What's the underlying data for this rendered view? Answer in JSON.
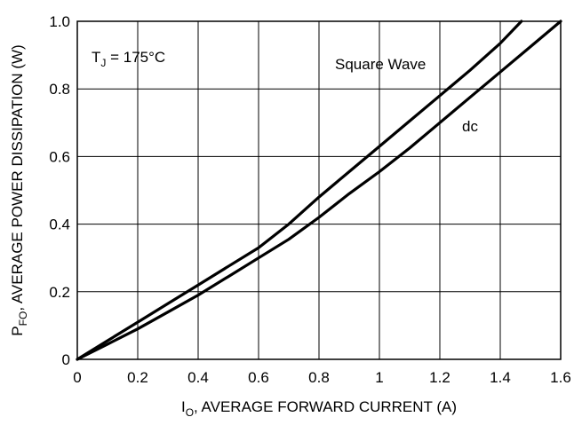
{
  "chart_data": {
    "type": "line",
    "title": "",
    "xlabel": {
      "main": "I",
      "sub": "O",
      "rest": ", AVERAGE FORWARD CURRENT (A)"
    },
    "ylabel": {
      "main": "P",
      "sub": "FO",
      "rest": ", AVERAGE POWER DISSIPATION (W)"
    },
    "xlim": [
      0,
      1.6
    ],
    "ylim": [
      0,
      1.0
    ],
    "xticks": [
      {
        "value": 0,
        "label": "0"
      },
      {
        "value": 0.2,
        "label": "0.2"
      },
      {
        "value": 0.4,
        "label": "0.4"
      },
      {
        "value": 0.6,
        "label": "0.6"
      },
      {
        "value": 0.8,
        "label": "0.8"
      },
      {
        "value": 1.0,
        "label": "1"
      },
      {
        "value": 1.2,
        "label": "1.2"
      },
      {
        "value": 1.4,
        "label": "1.4"
      },
      {
        "value": 1.6,
        "label": "1.6"
      }
    ],
    "yticks": [
      {
        "value": 0,
        "label": "0"
      },
      {
        "value": 0.2,
        "label": "0.2"
      },
      {
        "value": 0.4,
        "label": "0.4"
      },
      {
        "value": 0.6,
        "label": "0.6"
      },
      {
        "value": 0.8,
        "label": "0.8"
      },
      {
        "value": 1.0,
        "label": "1.0"
      }
    ],
    "grid": true,
    "condition": {
      "main": "T",
      "sub": "J",
      "rest": " = 175°C"
    },
    "series": [
      {
        "name": "Square Wave",
        "x": [
          0,
          0.1,
          0.2,
          0.3,
          0.4,
          0.5,
          0.6,
          0.7,
          0.8,
          0.9,
          1.0,
          1.1,
          1.2,
          1.3,
          1.4,
          1.47
        ],
        "y": [
          0,
          0.055,
          0.11,
          0.165,
          0.22,
          0.275,
          0.33,
          0.4,
          0.48,
          0.555,
          0.63,
          0.705,
          0.78,
          0.855,
          0.935,
          1.0
        ]
      },
      {
        "name": "dc",
        "x": [
          0,
          0.1,
          0.2,
          0.3,
          0.4,
          0.5,
          0.6,
          0.7,
          0.8,
          0.9,
          1.0,
          1.1,
          1.2,
          1.3,
          1.4,
          1.5,
          1.6
        ],
        "y": [
          0,
          0.045,
          0.09,
          0.14,
          0.19,
          0.245,
          0.3,
          0.355,
          0.42,
          0.49,
          0.555,
          0.625,
          0.7,
          0.775,
          0.85,
          0.925,
          1.0
        ]
      }
    ],
    "annotations": [
      {
        "text": "Square Wave",
        "series": "Square Wave"
      },
      {
        "text": "dc",
        "series": "dc"
      }
    ]
  }
}
